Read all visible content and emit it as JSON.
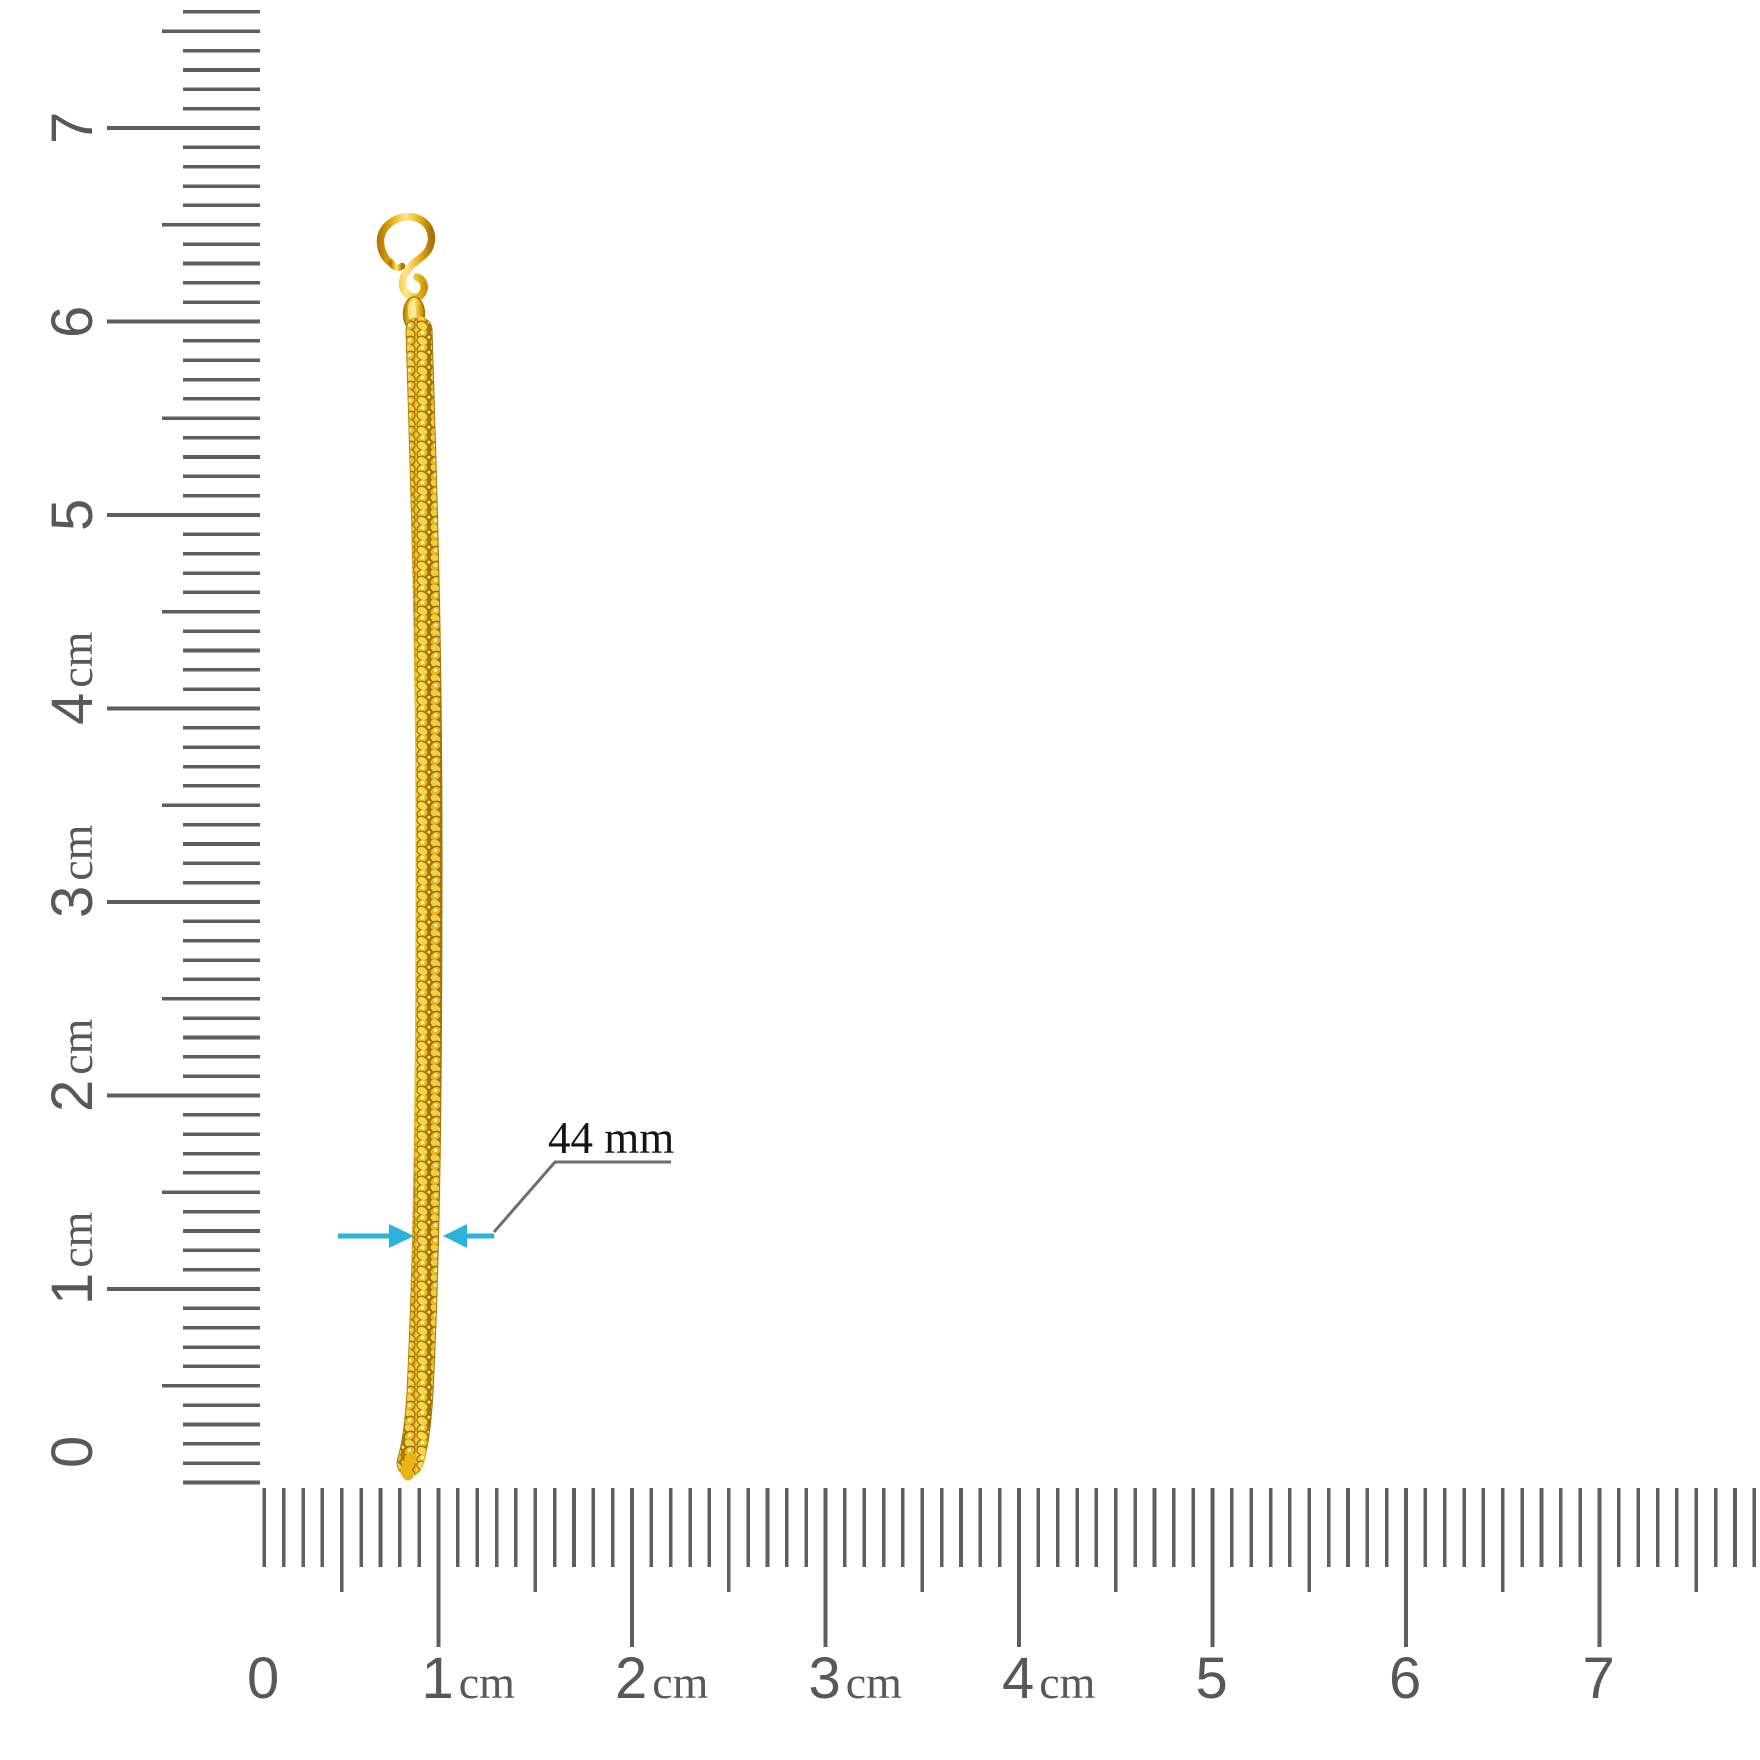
{
  "figure": {
    "subject": "gold-chain-with-s-hook-clasp"
  },
  "annotation": {
    "text": "44 mm"
  },
  "rulers": {
    "unit": "cm",
    "left": {
      "orientation": "vertical",
      "labels": [
        {
          "digit": "7",
          "unit": ""
        },
        {
          "digit": "6",
          "unit": ""
        },
        {
          "digit": "5",
          "unit": ""
        },
        {
          "digit": "4",
          "unit": "cm"
        },
        {
          "digit": "3",
          "unit": "cm"
        },
        {
          "digit": "2",
          "unit": "cm"
        },
        {
          "digit": "1",
          "unit": "cm"
        },
        {
          "digit": "0",
          "unit": ""
        }
      ]
    },
    "bottom": {
      "orientation": "horizontal",
      "labels": [
        {
          "digit": "0",
          "unit": ""
        },
        {
          "digit": "1",
          "unit": "cm"
        },
        {
          "digit": "2",
          "unit": "cm"
        },
        {
          "digit": "3",
          "unit": "cm"
        },
        {
          "digit": "4",
          "unit": "cm"
        },
        {
          "digit": "5",
          "unit": ""
        },
        {
          "digit": "6",
          "unit": ""
        },
        {
          "digit": "7",
          "unit": ""
        }
      ]
    }
  },
  "colors": {
    "tick": "#5e5e60",
    "label": "#58585a",
    "annotation_text": "#141414",
    "leader": "#6f6f6f",
    "arrow": "#2bb4da",
    "gold": "#e8b512",
    "gold_light": "#ffe98c",
    "gold_dark": "#b67c06"
  }
}
